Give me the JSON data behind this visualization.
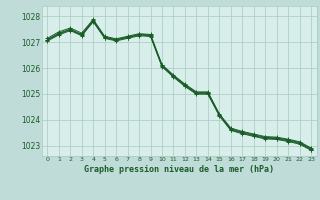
{
  "title": "Graphe pression niveau de la mer (hPa)",
  "fig_bg": "#c0dcd8",
  "plot_bg": "#d8eeea",
  "grid_color": "#a8c8c0",
  "line_color": "#1a5c28",
  "xlim": [
    -0.5,
    23.5
  ],
  "ylim": [
    1022.6,
    1028.4
  ],
  "yticks": [
    1023,
    1024,
    1025,
    1026,
    1027,
    1028
  ],
  "xticks": [
    0,
    1,
    2,
    3,
    4,
    5,
    6,
    7,
    8,
    9,
    10,
    11,
    12,
    13,
    14,
    15,
    16,
    17,
    18,
    19,
    20,
    21,
    22,
    23
  ],
  "series": [
    [
      1027.1,
      1027.35,
      1027.5,
      1027.3,
      1027.85,
      1027.2,
      1027.1,
      1027.2,
      1027.3,
      1027.28,
      1026.1,
      1025.7,
      1025.35,
      1025.05,
      1025.05,
      1024.2,
      1023.65,
      1023.52,
      1023.42,
      1023.32,
      1023.3,
      1023.22,
      1023.12,
      1022.88
    ],
    [
      1027.15,
      1027.4,
      1027.55,
      1027.35,
      1027.88,
      1027.23,
      1027.13,
      1027.23,
      1027.33,
      1027.3,
      1026.13,
      1025.73,
      1025.38,
      1025.08,
      1025.08,
      1024.23,
      1023.68,
      1023.55,
      1023.45,
      1023.35,
      1023.33,
      1023.25,
      1023.15,
      1022.91
    ],
    [
      1027.08,
      1027.32,
      1027.48,
      1027.28,
      1027.82,
      1027.18,
      1027.08,
      1027.18,
      1027.28,
      1027.25,
      1026.08,
      1025.68,
      1025.32,
      1025.02,
      1025.02,
      1024.18,
      1023.62,
      1023.49,
      1023.39,
      1023.29,
      1023.27,
      1023.19,
      1023.09,
      1022.85
    ],
    [
      1027.05,
      1027.28,
      1027.45,
      1027.25,
      1027.79,
      1027.15,
      1027.05,
      1027.15,
      1027.25,
      1027.22,
      1026.05,
      1025.65,
      1025.29,
      1024.99,
      1024.99,
      1024.15,
      1023.59,
      1023.46,
      1023.36,
      1023.26,
      1023.24,
      1023.16,
      1023.06,
      1022.82
    ]
  ]
}
